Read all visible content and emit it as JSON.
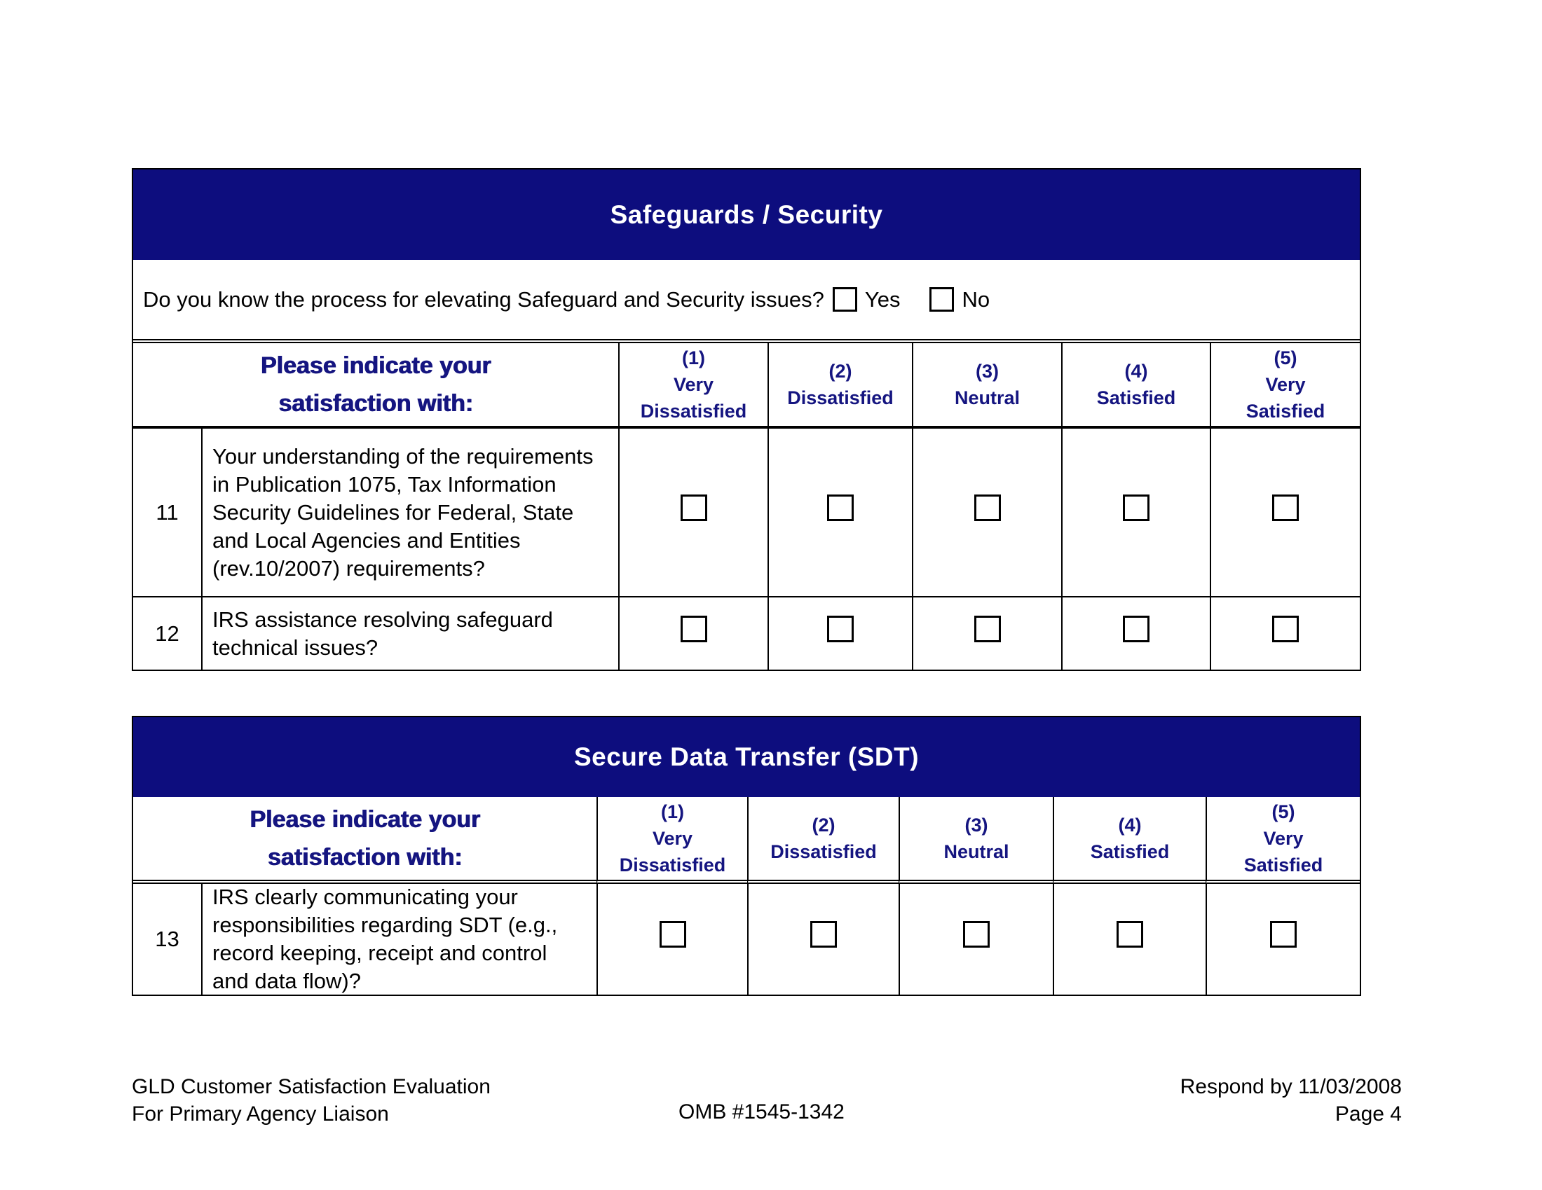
{
  "colors": {
    "band_bg": "#0d0d7e",
    "band_text": "#ffffff",
    "accent_text": "#151580",
    "body_text": "#000000"
  },
  "prompt": {
    "line1": "Please indicate your",
    "line2": "satisfaction with:"
  },
  "rating_columns": [
    {
      "num": "(1)",
      "line1": "Very",
      "line2": "Dissatisfied"
    },
    {
      "num": "(2)",
      "line1": "Dissatisfied",
      "line2": ""
    },
    {
      "num": "(3)",
      "line1": "Neutral",
      "line2": ""
    },
    {
      "num": "(4)",
      "line1": "Satisfied",
      "line2": ""
    },
    {
      "num": "(5)",
      "line1": "Very",
      "line2": "Satisfied"
    }
  ],
  "section_safeguards": {
    "title": "Safeguards / Security",
    "question": "Do you know the process for elevating Safeguard and Security issues?",
    "yes_label": "Yes",
    "no_label": "No",
    "rows": [
      {
        "num": "11",
        "text": "Your understanding of the requirements in Publication 1075, Tax Information Security Guidelines for Federal, State and Local Agencies and Entities (rev.10/2007) requirements?"
      },
      {
        "num": "12",
        "text": "IRS assistance resolving safeguard technical issues?"
      }
    ]
  },
  "section_sdt": {
    "title": "Secure Data Transfer (SDT)",
    "rows": [
      {
        "num": "13",
        "text": "IRS clearly communicating your responsibilities regarding SDT (e.g., record keeping, receipt and control and data flow)?"
      }
    ]
  },
  "footer": {
    "left_line1": "GLD Customer Satisfaction Evaluation",
    "left_line2": "For Primary Agency Liaison",
    "center": "OMB #1545-1342",
    "right_line1": "Respond by 11/03/2008",
    "right_line2": "Page 4"
  }
}
